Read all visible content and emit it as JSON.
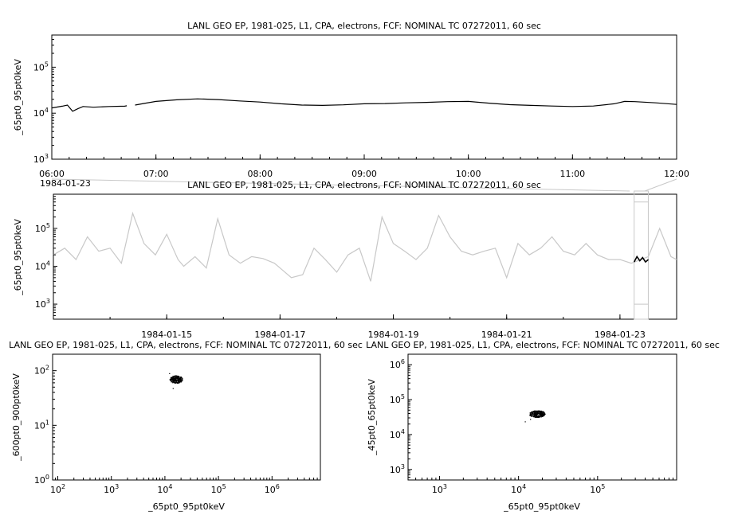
{
  "chart_data": [
    {
      "id": "top",
      "type": "line",
      "title": "LANL GEO EP, 1981-025, L1, CPA, electrons, FCF: NOMINAL TC 07272011, 60 sec",
      "ylabel": "_65pt0_95pt0keV",
      "yscale": "log",
      "ylim": [
        1000,
        500000
      ],
      "xlim": [
        6.0,
        12.0
      ],
      "xtick_labels": [
        "06:00",
        "07:00",
        "08:00",
        "09:00",
        "10:00",
        "11:00",
        "12:00"
      ],
      "date_label": "1984-01-23",
      "ytick_labels": [
        {
          "base": "10",
          "exp": "3"
        },
        {
          "base": "10",
          "exp": "4"
        },
        {
          "base": "10",
          "exp": "5"
        }
      ],
      "series": [
        {
          "x": [
            6.0,
            6.1,
            6.15,
            6.2,
            6.25,
            6.3,
            6.4,
            6.55,
            6.7,
            6.72
          ],
          "y": [
            13000,
            14200,
            15000,
            11000,
            12500,
            14000,
            13500,
            14000,
            14200,
            14500
          ]
        },
        {
          "x": [
            6.8,
            6.9,
            7.0,
            7.2,
            7.4,
            7.6,
            7.8,
            8.0,
            8.2,
            8.4,
            8.6,
            8.8,
            9.0,
            9.2,
            9.4,
            9.6,
            9.8,
            10.0,
            10.2,
            10.4,
            10.6,
            10.8,
            11.0,
            11.2,
            11.4,
            11.5,
            11.6,
            11.8,
            12.0
          ],
          "y": [
            15000,
            16500,
            18000,
            19500,
            20500,
            19800,
            18500,
            17500,
            16000,
            15000,
            14800,
            15200,
            16000,
            16200,
            16800,
            17200,
            17800,
            18000,
            16500,
            15300,
            14800,
            14300,
            14000,
            14300,
            16000,
            18000,
            17800,
            16800,
            15500
          ]
        }
      ]
    },
    {
      "id": "middle",
      "type": "line",
      "title": "LANL GEO EP, 1981-025, L1, CPA, electrons, FCF: NOMINAL TC 07272011, 60 sec",
      "ylabel": "_65pt0_95pt0keV",
      "yscale": "log",
      "ylim": [
        400,
        800000
      ],
      "xlim": [
        13.0,
        24.0
      ],
      "xtick_labels": [
        "1984-01-15",
        "1984-01-17",
        "1984-01-19",
        "1984-01-21",
        "1984-01-23"
      ],
      "ytick_labels": [
        {
          "base": "10",
          "exp": "3"
        },
        {
          "base": "10",
          "exp": "4"
        },
        {
          "base": "10",
          "exp": "5"
        }
      ],
      "highlight_range": [
        23.25,
        23.5
      ],
      "series_gray": [
        {
          "x": [
            13.0,
            13.2,
            13.4,
            13.6,
            13.8,
            14.0,
            14.2,
            14.4,
            14.6,
            14.8,
            15.0,
            15.2,
            15.3,
            15.5,
            15.7,
            15.9,
            16.1,
            16.3,
            16.5,
            16.7,
            16.9,
            17.0,
            17.2,
            17.4,
            17.6,
            17.8,
            18.0,
            18.2,
            18.4,
            18.6,
            18.8,
            19.0,
            19.2,
            19.4,
            19.6,
            19.8,
            20.0,
            20.2,
            20.4,
            20.6,
            20.8,
            21.0,
            21.2,
            21.4,
            21.6,
            21.8,
            22.0,
            22.2,
            22.4,
            22.6,
            22.8,
            23.0,
            23.2,
            23.5,
            23.7,
            23.9,
            24.0
          ],
          "y": [
            20000,
            30000,
            15000,
            60000,
            25000,
            30000,
            12000,
            250000,
            40000,
            20000,
            70000,
            15000,
            10000,
            18000,
            9000,
            180000,
            20000,
            12000,
            18000,
            16000,
            12000,
            9000,
            5000,
            6000,
            30000,
            15000,
            7000,
            20000,
            30000,
            4000,
            200000,
            40000,
            25000,
            15000,
            30000,
            220000,
            60000,
            25000,
            20000,
            25000,
            30000,
            5000,
            40000,
            20000,
            30000,
            60000,
            25000,
            20000,
            40000,
            20000,
            15000,
            15000,
            12000,
            18000,
            100000,
            18000,
            15000
          ]
        }
      ],
      "series_black": [
        {
          "x": [
            23.25,
            23.3,
            23.35,
            23.4,
            23.45,
            23.5
          ],
          "y": [
            13000,
            18000,
            14000,
            17000,
            13000,
            15000
          ]
        }
      ]
    },
    {
      "id": "bottom-left",
      "type": "scatter",
      "title": "LANL GEO EP, 1981-025, L1, CPA, electrons, FCF: NOMINAL TC 07272011, 60 sec",
      "xlabel": "_65pt0_95pt0keV",
      "ylabel": "_600pt0_900pt0keV",
      "xscale": "log",
      "yscale": "log",
      "xlim": [
        80,
        8000000
      ],
      "ylim": [
        1,
        200
      ],
      "xtick_labels": [
        {
          "base": "10",
          "exp": "2"
        },
        {
          "base": "10",
          "exp": "3"
        },
        {
          "base": "10",
          "exp": "4"
        },
        {
          "base": "10",
          "exp": "5"
        },
        {
          "base": "10",
          "exp": "6"
        }
      ],
      "ytick_labels": [
        {
          "base": "10",
          "exp": "0"
        },
        {
          "base": "10",
          "exp": "1"
        },
        {
          "base": "10",
          "exp": "2"
        }
      ],
      "cluster": {
        "x_center": 16000,
        "y_center": 70,
        "x_spread": 0.12,
        "y_spread": 0.07,
        "outliers": [
          [
            14000,
            48
          ],
          [
            12000,
            90
          ]
        ]
      }
    },
    {
      "id": "bottom-right",
      "type": "scatter",
      "title": "LANL GEO EP, 1981-025, L1, CPA, electrons, FCF: NOMINAL TC 07272011, 60 sec",
      "xlabel": "_65pt0_95pt0keV",
      "ylabel": "_45pt0_65pt0keV",
      "xscale": "log",
      "yscale": "log",
      "xlim": [
        400,
        1000000
      ],
      "ylim": [
        500,
        2000000
      ],
      "xtick_labels": [
        {
          "base": "10",
          "exp": "3"
        },
        {
          "base": "10",
          "exp": "4"
        },
        {
          "base": "10",
          "exp": "5"
        }
      ],
      "ytick_labels": [
        {
          "base": "10",
          "exp": "3"
        },
        {
          "base": "10",
          "exp": "4"
        },
        {
          "base": "10",
          "exp": "5"
        },
        {
          "base": "10",
          "exp": "6"
        }
      ],
      "cluster": {
        "x_center": 17000,
        "y_center": 40000,
        "x_spread": 0.1,
        "y_spread": 0.1,
        "outliers": [
          [
            12000,
            24000
          ],
          [
            14000,
            28000
          ]
        ]
      }
    }
  ]
}
